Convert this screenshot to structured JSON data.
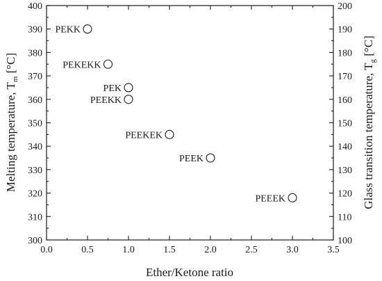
{
  "chart_data": {
    "type": "scatter",
    "xlabel": "Ether/Ketone ratio",
    "ylabel_left": {
      "text": "Melting temperature, T",
      "sub": "m",
      "unit": "[°C]"
    },
    "ylabel_right": {
      "text": "Glass transition temperature, T",
      "sub": "g",
      "unit": "[°C]"
    },
    "xlim": [
      0.0,
      3.5
    ],
    "ylim_left": [
      300,
      400
    ],
    "ylim_right": [
      100,
      200
    ],
    "x_ticks": [
      "0.0",
      "0.5",
      "1.0",
      "1.5",
      "2.0",
      "2.5",
      "3.0",
      "3.5"
    ],
    "y_ticks_left": [
      "300",
      "310",
      "320",
      "330",
      "340",
      "350",
      "360",
      "370",
      "380",
      "390",
      "400"
    ],
    "y_ticks_right": [
      "100",
      "110",
      "120",
      "130",
      "140",
      "150",
      "160",
      "170",
      "180",
      "190",
      "200"
    ],
    "grid": false,
    "points": [
      {
        "label": "PEKK",
        "x": 0.5,
        "y": 390
      },
      {
        "label": "PEKEKK",
        "x": 0.75,
        "y": 375
      },
      {
        "label": "PEK",
        "x": 1.0,
        "y": 365
      },
      {
        "label": "PEEKK",
        "x": 1.0,
        "y": 360
      },
      {
        "label": "PEEKEK",
        "x": 1.5,
        "y": 345
      },
      {
        "label": "PEEK",
        "x": 2.0,
        "y": 335
      },
      {
        "label": "PEEEK",
        "x": 3.0,
        "y": 318
      }
    ]
  }
}
